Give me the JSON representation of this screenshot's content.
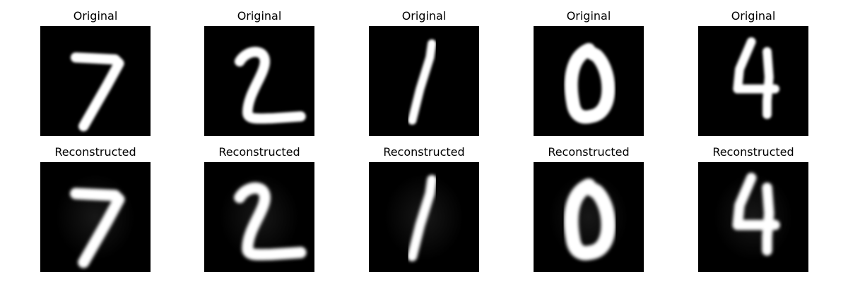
{
  "figure": {
    "rows": [
      {
        "title": "Original",
        "kind": "original",
        "digits": [
          "7",
          "2",
          "1",
          "0",
          "4"
        ]
      },
      {
        "title": "Reconstructed",
        "kind": "reconstructed",
        "digits": [
          "7",
          "2",
          "1",
          "0",
          "4"
        ]
      }
    ],
    "colors": {
      "background": "#ffffff",
      "panel": "#000000",
      "stroke": "#ffffff",
      "haze": "#2a2a2a"
    }
  }
}
